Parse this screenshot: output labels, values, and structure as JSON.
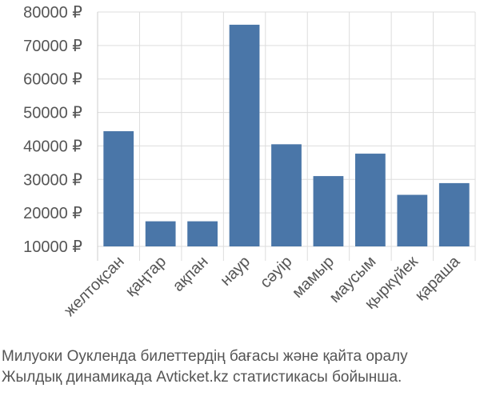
{
  "chart_data": {
    "type": "bar",
    "categories": [
      "желтоқсан",
      "қаңтар",
      "ақпан",
      "наур",
      "сәуір",
      "мамыр",
      "маусым",
      "қыркүйек",
      "қараша"
    ],
    "values": [
      44400,
      17500,
      17500,
      76200,
      40500,
      31000,
      37700,
      25400,
      28900
    ],
    "yticks": [
      10000,
      20000,
      30000,
      40000,
      50000,
      60000,
      70000,
      80000
    ],
    "ytick_labels": [
      "10000 ₽",
      "20000 ₽",
      "30000 ₽",
      "40000 ₽",
      "50000 ₽",
      "60000 ₽",
      "70000 ₽",
      "80000 ₽"
    ],
    "ylim": [
      10000,
      80000
    ],
    "grid": true,
    "bar_color": "#4a76a8",
    "caption": {
      "line1": "Милуоки Оукленда билеттердің бағасы және қайта оралу",
      "line2": "Жылдық динамикада Avticket.kz статистикасы бойынша."
    }
  }
}
